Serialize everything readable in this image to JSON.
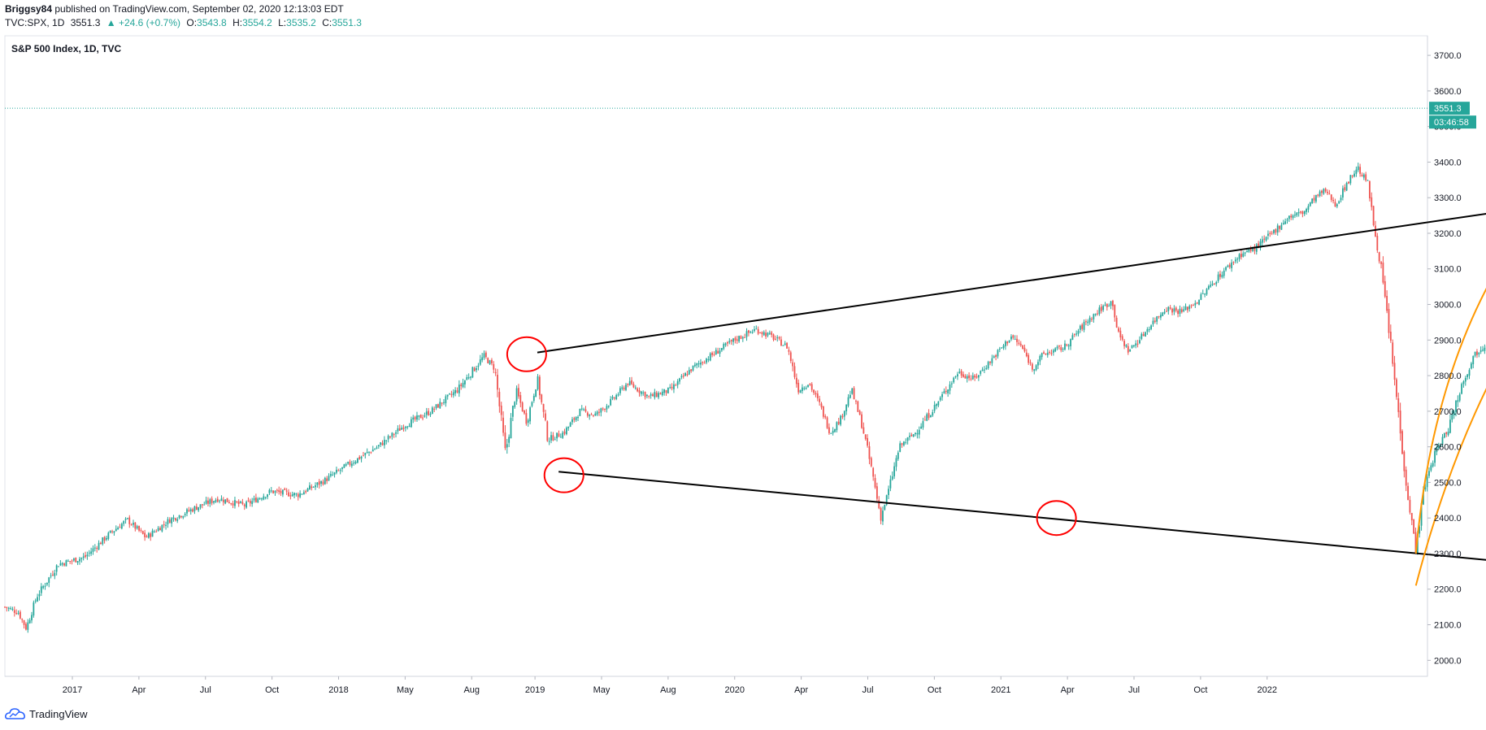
{
  "header": {
    "author": "Briggsy84",
    "published": "published on TradingView.com, September 02, 2020 12:13:03 EDT",
    "symbol": "TVC:SPX, 1D",
    "last": "3551.3",
    "change": "▲ +24.6 (+0.7%)",
    "open_label": "O:",
    "open": "3543.8",
    "high_label": "H:",
    "high": "3554.2",
    "low_label": "L:",
    "low": "3535.2",
    "close_label": "C:",
    "close": "3551.3"
  },
  "chart_title": "S&P 500 Index, 1D, TVC",
  "price_tag": "3551.3",
  "countdown_tag": "03:46:58",
  "brand": "TradingView",
  "colors": {
    "up": "#26a69a",
    "down": "#ef5350",
    "trend": "#000000",
    "annot": "#ff0000",
    "arc": "#ff9800"
  },
  "chart_data": {
    "type": "candlestick",
    "title": "S&P 500 Index, 1D, TVC",
    "y_ticks": [
      2000,
      2100,
      2200,
      2300,
      2400,
      2500,
      2600,
      2700,
      2800,
      2900,
      3000,
      3100,
      3200,
      3300,
      3400,
      3500,
      3600,
      3700
    ],
    "ylim": [
      1955,
      3755
    ],
    "x_ticks": [
      "2017",
      "Apr",
      "Jul",
      "Oct",
      "2018",
      "May",
      "Aug",
      "2019",
      "May",
      "Aug",
      "2020",
      "Apr",
      "Jul",
      "Oct",
      "2021",
      "Apr",
      "Jul",
      "Oct",
      "2022"
    ],
    "last_price": 3551.3,
    "price_path": [
      [
        0,
        2150
      ],
      [
        0.05,
        2135
      ],
      [
        0.08,
        2090
      ],
      [
        0.12,
        2180
      ],
      [
        0.2,
        2270
      ],
      [
        0.3,
        2290
      ],
      [
        0.4,
        2360
      ],
      [
        0.46,
        2395
      ],
      [
        0.53,
        2345
      ],
      [
        0.62,
        2395
      ],
      [
        0.72,
        2430
      ],
      [
        0.8,
        2455
      ],
      [
        0.9,
        2435
      ],
      [
        1.0,
        2475
      ],
      [
        1.1,
        2465
      ],
      [
        1.2,
        2505
      ],
      [
        1.3,
        2555
      ],
      [
        1.4,
        2600
      ],
      [
        1.5,
        2660
      ],
      [
        1.6,
        2700
      ],
      [
        1.7,
        2760
      ],
      [
        1.8,
        2855
      ],
      [
        1.84,
        2820
      ],
      [
        1.88,
        2580
      ],
      [
        1.92,
        2760
      ],
      [
        1.96,
        2670
      ],
      [
        2.0,
        2790
      ],
      [
        2.04,
        2620
      ],
      [
        2.1,
        2640
      ],
      [
        2.16,
        2700
      ],
      [
        2.22,
        2690
      ],
      [
        2.28,
        2730
      ],
      [
        2.34,
        2780
      ],
      [
        2.42,
        2740
      ],
      [
        2.5,
        2760
      ],
      [
        2.58,
        2820
      ],
      [
        2.66,
        2860
      ],
      [
        2.74,
        2900
      ],
      [
        2.82,
        2930
      ],
      [
        2.88,
        2910
      ],
      [
        2.94,
        2880
      ],
      [
        2.98,
        2760
      ],
      [
        3.02,
        2780
      ],
      [
        3.06,
        2720
      ],
      [
        3.1,
        2640
      ],
      [
        3.14,
        2680
      ],
      [
        3.18,
        2760
      ],
      [
        3.22,
        2660
      ],
      [
        3.26,
        2520
      ],
      [
        3.29,
        2400
      ],
      [
        3.32,
        2480
      ],
      [
        3.36,
        2600
      ],
      [
        3.42,
        2640
      ],
      [
        3.5,
        2720
      ],
      [
        3.58,
        2810
      ],
      [
        3.64,
        2790
      ],
      [
        3.7,
        2840
      ],
      [
        3.78,
        2910
      ],
      [
        3.82,
        2880
      ],
      [
        3.86,
        2820
      ],
      [
        3.9,
        2860
      ],
      [
        3.98,
        2880
      ],
      [
        4.06,
        2950
      ],
      [
        4.12,
        2990
      ],
      [
        4.16,
        3010
      ],
      [
        4.18,
        2920
      ],
      [
        4.22,
        2870
      ],
      [
        4.26,
        2900
      ],
      [
        4.3,
        2940
      ],
      [
        4.36,
        2990
      ],
      [
        4.42,
        2980
      ],
      [
        4.48,
        3010
      ],
      [
        4.56,
        3080
      ],
      [
        4.64,
        3140
      ],
      [
        4.7,
        3160
      ],
      [
        4.76,
        3200
      ],
      [
        4.82,
        3245
      ],
      [
        4.88,
        3260
      ],
      [
        4.92,
        3300
      ],
      [
        4.96,
        3320
      ],
      [
        5.0,
        3280
      ],
      [
        5.04,
        3340
      ],
      [
        5.08,
        3385
      ],
      [
        5.12,
        3340
      ],
      [
        5.14,
        3230
      ],
      [
        5.17,
        3100
      ],
      [
        5.2,
        2920
      ],
      [
        5.23,
        2720
      ],
      [
        5.27,
        2460
      ],
      [
        5.3,
        2310
      ],
      [
        5.33,
        2480
      ],
      [
        5.37,
        2580
      ],
      [
        5.42,
        2650
      ],
      [
        5.47,
        2770
      ],
      [
        5.52,
        2860
      ],
      [
        5.58,
        2900
      ],
      [
        5.63,
        2950
      ],
      [
        5.68,
        3070
      ],
      [
        5.72,
        3110
      ],
      [
        5.76,
        3010
      ],
      [
        5.8,
        3080
      ],
      [
        5.84,
        3140
      ],
      [
        5.88,
        3190
      ],
      [
        5.92,
        3260
      ],
      [
        5.96,
        3300
      ],
      [
        6.0,
        3340
      ],
      [
        6.04,
        3380
      ],
      [
        6.08,
        3470
      ],
      [
        6.12,
        3551
      ]
    ],
    "annotations": {
      "upper_trendline": [
        [
          2.0,
          2865
        ],
        [
          9.45,
          3680
        ]
      ],
      "lower_trendline": [
        [
          2.08,
          2530
        ],
        [
          9.95,
          1970
        ]
      ],
      "circles": [
        [
          1.96,
          2860
        ],
        [
          2.1,
          2520
        ],
        [
          3.95,
          2400
        ],
        [
          6.0,
          3375
        ],
        [
          6.04,
          2190
        ]
      ],
      "up_arrow": [
        [
          6.08,
          3555
        ],
        [
          6.15,
          3680
        ]
      ],
      "down_arrow": [
        [
          6.22,
          3650
        ],
        [
          6.7,
          2620
        ]
      ]
    }
  }
}
